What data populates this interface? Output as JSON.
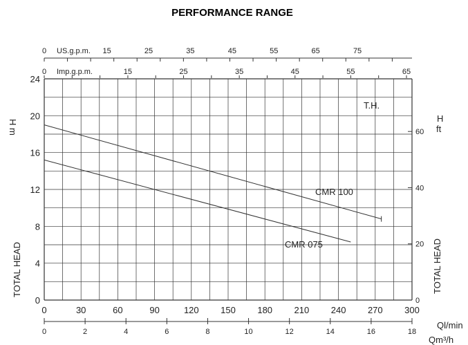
{
  "chart_data": {
    "type": "line",
    "title": "PERFORMANCE RANGE",
    "x_primary": {
      "unit": "Ql/min",
      "range": [
        0,
        300
      ],
      "ticks": [
        0,
        30,
        60,
        90,
        120,
        150,
        180,
        210,
        240,
        270,
        300
      ]
    },
    "x_secondary": {
      "unit": "Qm³/h",
      "range": [
        0,
        18
      ],
      "ticks": [
        0,
        2,
        4,
        6,
        8,
        10,
        12,
        14,
        16,
        18
      ]
    },
    "x_top_us": {
      "label": "US.g.p.m.",
      "ticks": [
        "0",
        "15",
        "25",
        "35",
        "45",
        "55",
        "65",
        "75"
      ]
    },
    "x_top_imp": {
      "label": "Imp.g.p.m.",
      "ticks": [
        "0",
        "15",
        "25",
        "35",
        "45",
        "55",
        "65"
      ]
    },
    "y_left": {
      "unit": "H m",
      "range": [
        0,
        24
      ],
      "ticks": [
        0,
        4,
        8,
        12,
        16,
        20,
        24
      ],
      "label": "TOTAL HEAD"
    },
    "y_right": {
      "unit": "H ft",
      "ticks": [
        0,
        20,
        40,
        60
      ],
      "label": "TOTAL HEAD"
    },
    "annotation": "T.H.",
    "grid": true,
    "series": [
      {
        "name": "CMR 100",
        "x": [
          0,
          275
        ],
        "y": [
          19.0,
          8.8
        ]
      },
      {
        "name": "CMR 075",
        "x": [
          0,
          250
        ],
        "y": [
          15.2,
          6.3
        ]
      }
    ]
  }
}
